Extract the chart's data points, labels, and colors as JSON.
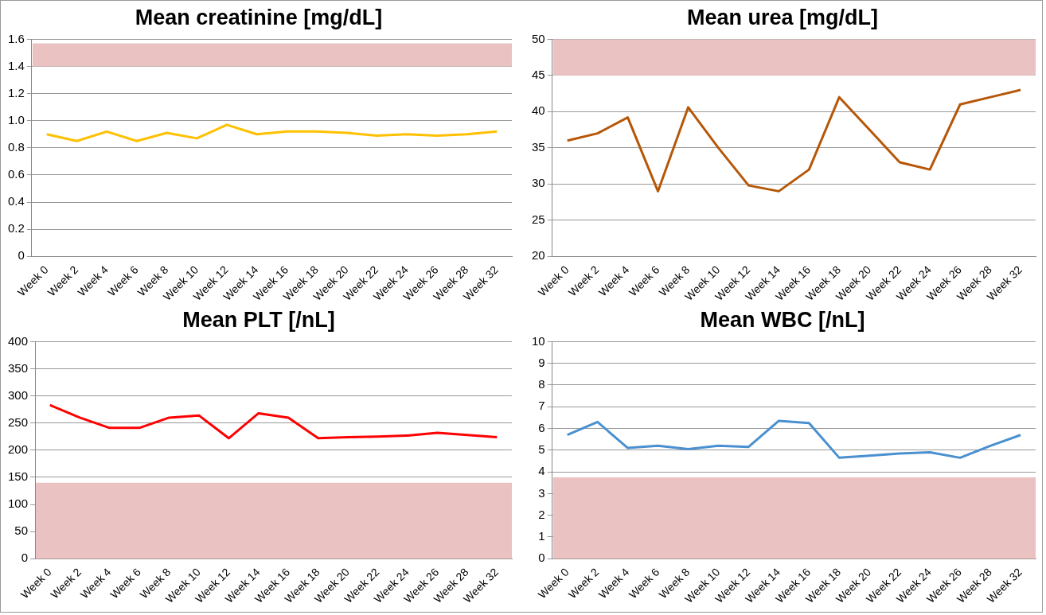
{
  "chart_data": [
    {
      "type": "line",
      "title": "Mean creatinine [mg/dL]",
      "categories": [
        "Week 0",
        "Week 2",
        "Week 4",
        "Week 6",
        "Week 8",
        "Week 10",
        "Week 12",
        "Week 14",
        "Week 16",
        "Week 18",
        "Week 20",
        "Week 22",
        "Week 24",
        "Week 26",
        "Week 28",
        "Week 32"
      ],
      "series": [
        {
          "color": "#ffc000",
          "values": [
            0.9,
            0.85,
            0.92,
            0.85,
            0.91,
            0.87,
            0.97,
            0.9,
            0.92,
            0.92,
            0.91,
            0.89,
            0.9,
            0.89,
            0.9,
            0.92
          ]
        }
      ],
      "ylim": [
        0,
        1.6
      ],
      "yticks": [
        {
          "value": 0,
          "label": "0"
        },
        {
          "value": 0.2,
          "label": "0.2"
        },
        {
          "value": 0.4,
          "label": "0.4"
        },
        {
          "value": 0.6,
          "label": "0.6"
        },
        {
          "value": 0.8,
          "label": "0.8"
        },
        {
          "value": 1.0,
          "label": "1.0"
        },
        {
          "value": 1.2,
          "label": "1.2"
        },
        {
          "value": 1.4,
          "label": "1.4"
        },
        {
          "value": 1.6,
          "label": "1.6"
        }
      ],
      "grid": "y",
      "bands": [
        {
          "axis": "y",
          "from": 1.4,
          "to": 1.57,
          "color": "#c0504d"
        }
      ]
    },
    {
      "type": "line",
      "title": "Mean urea [mg/dL]",
      "categories": [
        "Week 0",
        "Week 2",
        "Week 4",
        "Week 6",
        "Week 8",
        "Week 10",
        "Week 12",
        "Week 14",
        "Week 16",
        "Week 18",
        "Week 20",
        "Week 22",
        "Week 24",
        "Week 26",
        "Week 28",
        "Week 32"
      ],
      "series": [
        {
          "color": "#b65708",
          "values": [
            36,
            37,
            39.2,
            29,
            40.6,
            35,
            29.8,
            29,
            32,
            42,
            37.5,
            33,
            32,
            41,
            42,
            43
          ]
        }
      ],
      "ylim": [
        20,
        50
      ],
      "yticks": [
        20,
        25,
        30,
        35,
        40,
        45,
        50
      ],
      "grid": "y",
      "bands": [
        {
          "axis": "y",
          "from": 45,
          "to": 50,
          "color": "#c0504d"
        }
      ]
    },
    {
      "type": "line",
      "title": "Mean PLT [/nL]",
      "categories": [
        "Week 0",
        "Week 2",
        "Week 4",
        "Week 6",
        "Week 8",
        "Week 10",
        "Week 12",
        "Week 14",
        "Week 16",
        "Week 18",
        "Week 20",
        "Week 22",
        "Week 24",
        "Week 26",
        "Week 28",
        "Week 32"
      ],
      "series": [
        {
          "color": "#ff0000",
          "values": [
            283,
            260,
            241,
            241,
            260,
            264,
            222,
            268,
            260,
            222,
            224,
            225,
            227,
            232,
            228,
            224
          ]
        }
      ],
      "ylim": [
        0,
        400
      ],
      "yticks": [
        0,
        50,
        100,
        150,
        200,
        250,
        300,
        350,
        400
      ],
      "grid": "y",
      "bands": [
        {
          "axis": "y",
          "from": 0,
          "to": 140,
          "color": "#c0504d"
        }
      ]
    },
    {
      "type": "line",
      "title": "Mean WBC [/nL]",
      "categories": [
        "Week 0",
        "Week 2",
        "Week 4",
        "Week 6",
        "Week 8",
        "Week 10",
        "Week 12",
        "Week 14",
        "Week 16",
        "Week 18",
        "Week 20",
        "Week 22",
        "Week 24",
        "Week 26",
        "Week 28",
        "Week 32"
      ],
      "series": [
        {
          "color": "#4a90d0",
          "values": [
            5.7,
            6.3,
            5.1,
            5.2,
            5.05,
            5.2,
            5.15,
            6.35,
            6.25,
            4.65,
            4.75,
            4.85,
            4.9,
            4.65,
            5.2,
            5.7
          ]
        }
      ],
      "ylim": [
        0,
        10
      ],
      "yticks": [
        0,
        1,
        2,
        3,
        4,
        5,
        6,
        7,
        8,
        9,
        10
      ],
      "grid": "y",
      "bands": [
        {
          "axis": "y",
          "from": 0,
          "to": 3.75,
          "color": "#c0504d"
        }
      ]
    }
  ]
}
